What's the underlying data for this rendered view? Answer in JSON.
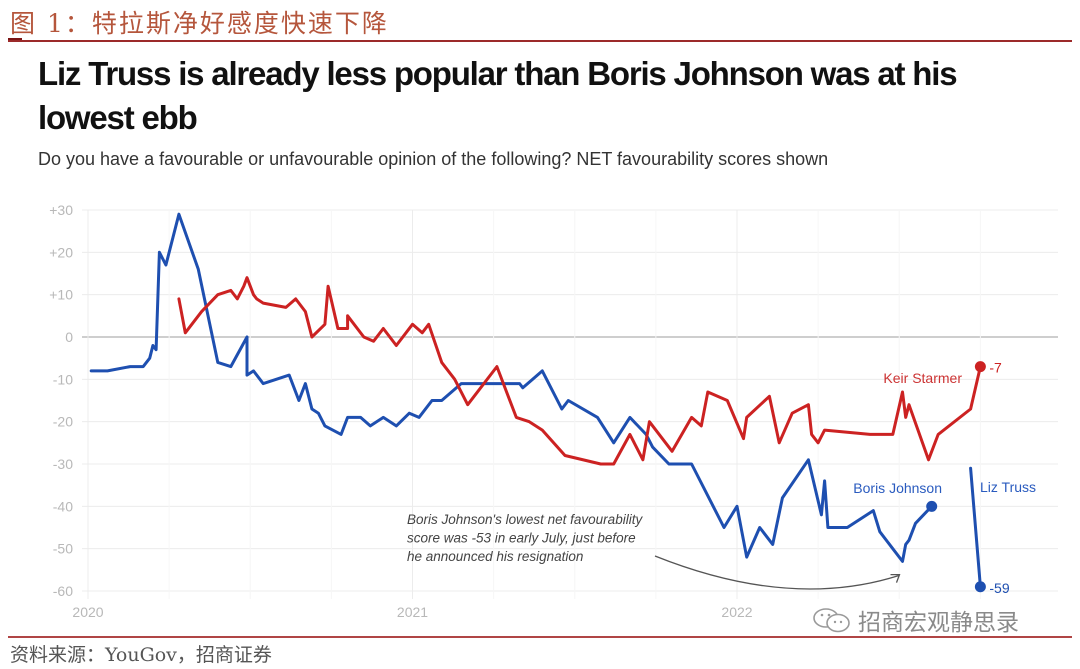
{
  "figure": {
    "caption": "图 1：特拉斯净好感度快速下降",
    "source": "资料来源：YouGov，招商证券",
    "watermark": "招商宏观静思录",
    "watermark_icon": "wechat-icon"
  },
  "chart_data": {
    "type": "line",
    "title": "Liz Truss is already less popular than Boris Johnson was at his lowest ebb",
    "subtitle": "Do you have a favourable or unfavourable opinion of the following? NET favourability scores shown",
    "xlabel": "",
    "ylabel": "",
    "xlim": [
      2020.0,
      2022.82
    ],
    "ylim": [
      -60,
      30
    ],
    "grid": true,
    "legend": "inline labels",
    "x_ticks": [
      {
        "value": 2020,
        "label": "2020"
      },
      {
        "value": 2021,
        "label": "2021"
      },
      {
        "value": 2022,
        "label": "2022"
      }
    ],
    "y_ticks": [
      {
        "value": 30,
        "label": "+30"
      },
      {
        "value": 20,
        "label": "+20"
      },
      {
        "value": 10,
        "label": "+10"
      },
      {
        "value": 0,
        "label": "0"
      },
      {
        "value": -10,
        "label": "-10"
      },
      {
        "value": -20,
        "label": "-20"
      },
      {
        "value": -30,
        "label": "-30"
      },
      {
        "value": -40,
        "label": "-40"
      },
      {
        "value": -50,
        "label": "-50"
      },
      {
        "value": -60,
        "label": "-60"
      }
    ],
    "series": [
      {
        "name": "Boris Johnson",
        "color": "#1e4fb0",
        "end_marker": true,
        "end_label": "",
        "points": [
          [
            2020.01,
            -8
          ],
          [
            2020.06,
            -8
          ],
          [
            2020.13,
            -7
          ],
          [
            2020.17,
            -7
          ],
          [
            2020.19,
            -5
          ],
          [
            2020.2,
            -2
          ],
          [
            2020.21,
            -3
          ],
          [
            2020.22,
            20
          ],
          [
            2020.24,
            17
          ],
          [
            2020.28,
            29
          ],
          [
            2020.34,
            16
          ],
          [
            2020.4,
            -6
          ],
          [
            2020.44,
            -7
          ],
          [
            2020.49,
            0
          ],
          [
            2020.49,
            -9
          ],
          [
            2020.51,
            -8
          ],
          [
            2020.54,
            -11
          ],
          [
            2020.62,
            -9
          ],
          [
            2020.65,
            -15
          ],
          [
            2020.67,
            -11
          ],
          [
            2020.69,
            -17
          ],
          [
            2020.71,
            -18
          ],
          [
            2020.73,
            -21
          ],
          [
            2020.78,
            -23
          ],
          [
            2020.8,
            -19
          ],
          [
            2020.84,
            -19
          ],
          [
            2020.87,
            -21
          ],
          [
            2020.91,
            -19
          ],
          [
            2020.95,
            -21
          ],
          [
            2020.99,
            -18
          ],
          [
            2021.02,
            -19
          ],
          [
            2021.06,
            -15
          ],
          [
            2021.09,
            -15
          ],
          [
            2021.15,
            -11
          ],
          [
            2021.2,
            -11
          ],
          [
            2021.33,
            -11
          ],
          [
            2021.34,
            -12
          ],
          [
            2021.4,
            -8
          ],
          [
            2021.46,
            -17
          ],
          [
            2021.48,
            -15
          ],
          [
            2021.57,
            -19
          ],
          [
            2021.62,
            -25
          ],
          [
            2021.67,
            -19
          ],
          [
            2021.72,
            -23
          ],
          [
            2021.74,
            -26
          ],
          [
            2021.79,
            -30
          ],
          [
            2021.86,
            -30
          ],
          [
            2021.96,
            -45
          ],
          [
            2022.0,
            -40
          ],
          [
            2022.03,
            -52
          ],
          [
            2022.07,
            -45
          ],
          [
            2022.11,
            -49
          ],
          [
            2022.14,
            -38
          ],
          [
            2022.22,
            -29
          ],
          [
            2022.26,
            -42
          ],
          [
            2022.27,
            -34
          ],
          [
            2022.28,
            -45
          ],
          [
            2022.34,
            -45
          ],
          [
            2022.42,
            -41
          ],
          [
            2022.44,
            -46
          ],
          [
            2022.51,
            -53
          ],
          [
            2022.52,
            -49
          ],
          [
            2022.53,
            -48
          ],
          [
            2022.55,
            -44
          ],
          [
            2022.6,
            -40
          ]
        ]
      },
      {
        "name": "Keir Starmer",
        "color": "#cc2222",
        "end_marker": true,
        "end_label": "-7",
        "points": [
          [
            2020.28,
            9
          ],
          [
            2020.3,
            1
          ],
          [
            2020.35,
            6
          ],
          [
            2020.4,
            10
          ],
          [
            2020.44,
            11
          ],
          [
            2020.46,
            9
          ],
          [
            2020.48,
            12
          ],
          [
            2020.49,
            14
          ],
          [
            2020.51,
            10
          ],
          [
            2020.52,
            9
          ],
          [
            2020.52,
            9
          ],
          [
            2020.54,
            8
          ],
          [
            2020.61,
            7
          ],
          [
            2020.64,
            9
          ],
          [
            2020.67,
            6
          ],
          [
            2020.69,
            0
          ],
          [
            2020.73,
            3
          ],
          [
            2020.74,
            12
          ],
          [
            2020.77,
            2
          ],
          [
            2020.8,
            2
          ],
          [
            2020.8,
            5
          ],
          [
            2020.85,
            0
          ],
          [
            2020.88,
            -1
          ],
          [
            2020.91,
            2
          ],
          [
            2020.95,
            -2
          ],
          [
            2021.0,
            3
          ],
          [
            2021.03,
            1
          ],
          [
            2021.05,
            3
          ],
          [
            2021.09,
            -6
          ],
          [
            2021.13,
            -10
          ],
          [
            2021.17,
            -16
          ],
          [
            2021.26,
            -7
          ],
          [
            2021.32,
            -19
          ],
          [
            2021.36,
            -20
          ],
          [
            2021.4,
            -22
          ],
          [
            2021.47,
            -28
          ],
          [
            2021.58,
            -30
          ],
          [
            2021.62,
            -30
          ],
          [
            2021.67,
            -23
          ],
          [
            2021.71,
            -29
          ],
          [
            2021.73,
            -20
          ],
          [
            2021.8,
            -27
          ],
          [
            2021.86,
            -19
          ],
          [
            2021.89,
            -21
          ],
          [
            2021.91,
            -13
          ],
          [
            2021.97,
            -15
          ],
          [
            2022.02,
            -24
          ],
          [
            2022.03,
            -19
          ],
          [
            2022.1,
            -14
          ],
          [
            2022.13,
            -25
          ],
          [
            2022.17,
            -18
          ],
          [
            2022.22,
            -16
          ],
          [
            2022.23,
            -23
          ],
          [
            2022.25,
            -25
          ],
          [
            2022.27,
            -22
          ],
          [
            2022.41,
            -23
          ],
          [
            2022.48,
            -23
          ],
          [
            2022.51,
            -13
          ],
          [
            2022.52,
            -19
          ],
          [
            2022.53,
            -16
          ],
          [
            2022.59,
            -29
          ],
          [
            2022.62,
            -23
          ],
          [
            2022.72,
            -17
          ],
          [
            2022.75,
            -7
          ]
        ]
      },
      {
        "name": "Liz Truss",
        "color": "#1e4fb0",
        "end_marker": true,
        "end_label": "-59",
        "points": [
          [
            2022.72,
            -31
          ],
          [
            2022.75,
            -59
          ]
        ]
      }
    ],
    "annotations": [
      {
        "text_lines": [
          "Boris Johnson's lowest net favourability",
          "score was -53 in early July, just before",
          "he announced his resignation"
        ],
        "points_to": [
          2022.51,
          -54
        ]
      }
    ]
  }
}
